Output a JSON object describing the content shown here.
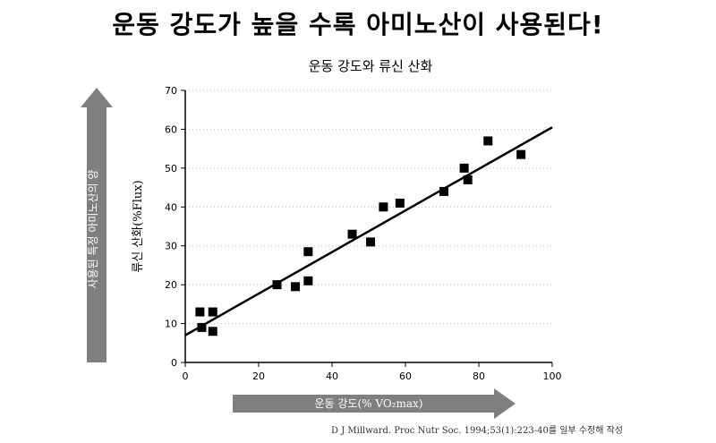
{
  "headline": "운동 강도가 높을 수록 아미노산이 사용된다!",
  "citation": "D J Millward. Proc Nutr Soc. 1994;53(1):223-40를 일부 수정해 작성",
  "annotations": {
    "up_arrow_label": "사용된 특정 아미노산의 양",
    "right_arrow_label": "운동 강도(% VO₂max)"
  },
  "colors": {
    "arrow": "#7f7f7f",
    "marker": "#000000",
    "grid": "#bdbdbd"
  },
  "chart_data": {
    "type": "scatter",
    "title": "운동 강도와 류신 산화",
    "xlabel": "",
    "ylabel": "류신 산화(%Flux)",
    "xlim": [
      0,
      100
    ],
    "ylim": [
      0,
      70
    ],
    "xticks": [
      0,
      20,
      40,
      60,
      80,
      100
    ],
    "yticks": [
      0,
      10,
      20,
      30,
      40,
      50,
      60,
      70
    ],
    "grid": "horizontal-dotted",
    "points": [
      {
        "x": 4,
        "y": 13
      },
      {
        "x": 7.5,
        "y": 13
      },
      {
        "x": 4.5,
        "y": 9
      },
      {
        "x": 7.5,
        "y": 8
      },
      {
        "x": 25,
        "y": 20
      },
      {
        "x": 30,
        "y": 19.5
      },
      {
        "x": 33.5,
        "y": 21
      },
      {
        "x": 33.5,
        "y": 28.5
      },
      {
        "x": 45.5,
        "y": 33
      },
      {
        "x": 50.5,
        "y": 31
      },
      {
        "x": 54,
        "y": 40
      },
      {
        "x": 58.5,
        "y": 41
      },
      {
        "x": 70.5,
        "y": 44
      },
      {
        "x": 76,
        "y": 50
      },
      {
        "x": 77,
        "y": 47
      },
      {
        "x": 82.5,
        "y": 57
      },
      {
        "x": 91.5,
        "y": 53.5
      }
    ],
    "trendline": {
      "x": [
        0,
        100
      ],
      "y": [
        7,
        60.5
      ]
    }
  }
}
